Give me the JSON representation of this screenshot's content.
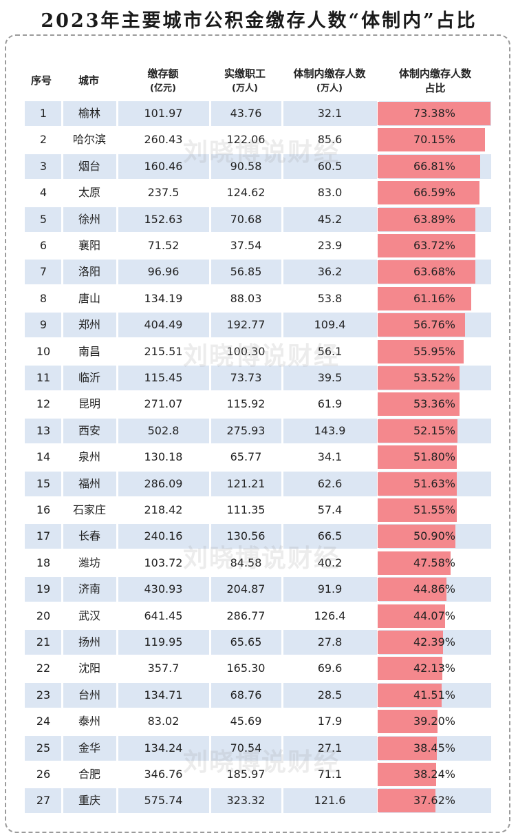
{
  "title": "2023年主要城市公积金缴存人数“体制内”占比",
  "headers": {
    "seq": "序号",
    "city": "城市",
    "deposit": "缴存额",
    "deposit_unit": "(亿元)",
    "workers": "实缴职工",
    "workers_unit": "(万人)",
    "gov_depositors": "体制内缴存人数",
    "gov_depositors_unit": "(万人)",
    "ratio": "体制内缴存人数",
    "ratio_line2": "占比"
  },
  "watermark": "刘晓博说财经",
  "colors": {
    "row_shade": "#dce6f3",
    "bar": "#f4888d"
  },
  "rows": [
    {
      "seq": "1",
      "city": "榆林",
      "deposit": "101.97",
      "workers": "43.76",
      "gov": "32.1",
      "ratio": "73.38%",
      "ratio_value": 73.38
    },
    {
      "seq": "2",
      "city": "哈尔滨",
      "deposit": "260.43",
      "workers": "122.06",
      "gov": "85.6",
      "ratio": "70.15%",
      "ratio_value": 70.15
    },
    {
      "seq": "3",
      "city": "烟台",
      "deposit": "160.46",
      "workers": "90.58",
      "gov": "60.5",
      "ratio": "66.81%",
      "ratio_value": 66.81
    },
    {
      "seq": "4",
      "city": "太原",
      "deposit": "237.5",
      "workers": "124.62",
      "gov": "83.0",
      "ratio": "66.59%",
      "ratio_value": 66.59
    },
    {
      "seq": "5",
      "city": "徐州",
      "deposit": "152.63",
      "workers": "70.68",
      "gov": "45.2",
      "ratio": "63.89%",
      "ratio_value": 63.89
    },
    {
      "seq": "6",
      "city": "襄阳",
      "deposit": "71.52",
      "workers": "37.54",
      "gov": "23.9",
      "ratio": "63.72%",
      "ratio_value": 63.72
    },
    {
      "seq": "7",
      "city": "洛阳",
      "deposit": "96.96",
      "workers": "56.85",
      "gov": "36.2",
      "ratio": "63.68%",
      "ratio_value": 63.68
    },
    {
      "seq": "8",
      "city": "唐山",
      "deposit": "134.19",
      "workers": "88.03",
      "gov": "53.8",
      "ratio": "61.16%",
      "ratio_value": 61.16
    },
    {
      "seq": "9",
      "city": "郑州",
      "deposit": "404.49",
      "workers": "192.77",
      "gov": "109.4",
      "ratio": "56.76%",
      "ratio_value": 56.76
    },
    {
      "seq": "10",
      "city": "南昌",
      "deposit": "215.51",
      "workers": "100.30",
      "gov": "56.1",
      "ratio": "55.95%",
      "ratio_value": 55.95
    },
    {
      "seq": "11",
      "city": "临沂",
      "deposit": "115.45",
      "workers": "73.73",
      "gov": "39.5",
      "ratio": "53.52%",
      "ratio_value": 53.52
    },
    {
      "seq": "12",
      "city": "昆明",
      "deposit": "271.07",
      "workers": "115.92",
      "gov": "61.9",
      "ratio": "53.36%",
      "ratio_value": 53.36
    },
    {
      "seq": "13",
      "city": "西安",
      "deposit": "502.8",
      "workers": "275.93",
      "gov": "143.9",
      "ratio": "52.15%",
      "ratio_value": 52.15
    },
    {
      "seq": "14",
      "city": "泉州",
      "deposit": "130.18",
      "workers": "65.77",
      "gov": "34.1",
      "ratio": "51.80%",
      "ratio_value": 51.8
    },
    {
      "seq": "15",
      "city": "福州",
      "deposit": "286.09",
      "workers": "121.21",
      "gov": "62.6",
      "ratio": "51.63%",
      "ratio_value": 51.63
    },
    {
      "seq": "16",
      "city": "石家庄",
      "deposit": "218.42",
      "workers": "111.35",
      "gov": "57.4",
      "ratio": "51.55%",
      "ratio_value": 51.55
    },
    {
      "seq": "17",
      "city": "长春",
      "deposit": "240.16",
      "workers": "130.56",
      "gov": "66.5",
      "ratio": "50.90%",
      "ratio_value": 50.9
    },
    {
      "seq": "18",
      "city": "潍坊",
      "deposit": "103.72",
      "workers": "84.58",
      "gov": "40.2",
      "ratio": "47.58%",
      "ratio_value": 47.58
    },
    {
      "seq": "19",
      "city": "济南",
      "deposit": "430.93",
      "workers": "204.87",
      "gov": "91.9",
      "ratio": "44.86%",
      "ratio_value": 44.86
    },
    {
      "seq": "20",
      "city": "武汉",
      "deposit": "641.45",
      "workers": "286.77",
      "gov": "126.4",
      "ratio": "44.07%",
      "ratio_value": 44.07
    },
    {
      "seq": "21",
      "city": "扬州",
      "deposit": "119.95",
      "workers": "65.65",
      "gov": "27.8",
      "ratio": "42.39%",
      "ratio_value": 42.39
    },
    {
      "seq": "22",
      "city": "沈阳",
      "deposit": "357.7",
      "workers": "165.30",
      "gov": "69.6",
      "ratio": "42.13%",
      "ratio_value": 42.13
    },
    {
      "seq": "23",
      "city": "台州",
      "deposit": "134.71",
      "workers": "68.76",
      "gov": "28.5",
      "ratio": "41.51%",
      "ratio_value": 41.51
    },
    {
      "seq": "24",
      "city": "泰州",
      "deposit": "83.02",
      "workers": "45.69",
      "gov": "17.9",
      "ratio": "39.20%",
      "ratio_value": 39.2
    },
    {
      "seq": "25",
      "city": "金华",
      "deposit": "134.24",
      "workers": "70.54",
      "gov": "27.1",
      "ratio": "38.45%",
      "ratio_value": 38.45
    },
    {
      "seq": "26",
      "city": "合肥",
      "deposit": "346.76",
      "workers": "185.97",
      "gov": "71.1",
      "ratio": "38.24%",
      "ratio_value": 38.24
    },
    {
      "seq": "27",
      "city": "重庆",
      "deposit": "575.74",
      "workers": "323.32",
      "gov": "121.6",
      "ratio": "37.62%",
      "ratio_value": 37.62
    }
  ]
}
